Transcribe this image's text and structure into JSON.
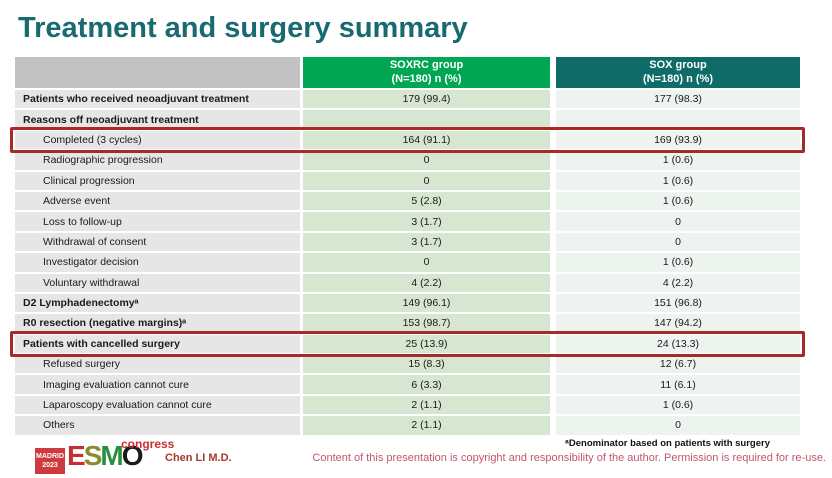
{
  "slide": {
    "title": "Treatment and surgery summary"
  },
  "table": {
    "groups": [
      {
        "name": "SOXRC group",
        "n": "(N=180)  n (%)"
      },
      {
        "name": "SOX group",
        "n": "(N=180)  n (%)"
      }
    ],
    "rows": [
      {
        "label": "Patients who received neoadjuvant treatment",
        "soxrc": "179 (99.4)",
        "sox": "177 (98.3)"
      },
      {
        "label": "Reasons off neoadjuvant treatment",
        "soxrc": "",
        "sox": ""
      },
      {
        "label": "Completed (3 cycles)",
        "soxrc": "164 (91.1)",
        "sox": "169 (93.9)"
      },
      {
        "label": "Radiographic progression",
        "soxrc": "0",
        "sox": "1 (0.6)"
      },
      {
        "label": "Clinical progression",
        "soxrc": "0",
        "sox": "1 (0.6)"
      },
      {
        "label": "Adverse event",
        "soxrc": "5 (2.8)",
        "sox": "1 (0.6)"
      },
      {
        "label": "Loss to follow-up",
        "soxrc": "3 (1.7)",
        "sox": "0"
      },
      {
        "label": "Withdrawal of consent",
        "soxrc": "3 (1.7)",
        "sox": "0"
      },
      {
        "label": "Investigator decision",
        "soxrc": "0",
        "sox": "1 (0.6)"
      },
      {
        "label": "Voluntary withdrawal",
        "soxrc": "4 (2.2)",
        "sox": "4 (2.2)"
      },
      {
        "label": "D2 Lymphadenectomyᵃ",
        "soxrc": "149 (96.1)",
        "sox": "151 (96.8)"
      },
      {
        "label": "R0 resection (negative margins)ᵃ",
        "soxrc": "153 (98.7)",
        "sox": "147 (94.2)"
      },
      {
        "label": "Patients with cancelled surgery",
        "soxrc": "25 (13.9)",
        "sox": "24 (13.3)"
      },
      {
        "label": "Refused surgery",
        "soxrc": "15 (8.3)",
        "sox": "12 (6.7)"
      },
      {
        "label": "Imaging evaluation cannot cure",
        "soxrc": "6 (3.3)",
        "sox": "11 (6.1)"
      },
      {
        "label": "Laparoscopy evaluation cannot cure",
        "soxrc": "2 (1.1)",
        "sox": "1 (0.6)"
      },
      {
        "label": "Others",
        "soxrc": "2 (1.1)",
        "sox": "0"
      }
    ]
  },
  "footer": {
    "footnote": "ᵃDenominator based on patients with surgery",
    "copyright": "Content of this presentation is copyright and responsibility of the author.  Permission is required for re-use.",
    "author": "Chen LI M.D.",
    "logo": {
      "city": "MADRID",
      "year": "2023",
      "letters": [
        "E",
        "S",
        "M",
        "O"
      ],
      "congress": "congress"
    }
  },
  "colors": {
    "title": "#186a70",
    "soxrc_header": "#00a651",
    "sox_header": "#0e6b67",
    "label_cell": "#e6e6e6",
    "soxrc_cell": "#d6e6d0",
    "sox_cell": "#edf3ee",
    "highlight_border": "#a62a26",
    "copyright_text": "#c0586a",
    "author_text": "#a8382c"
  }
}
